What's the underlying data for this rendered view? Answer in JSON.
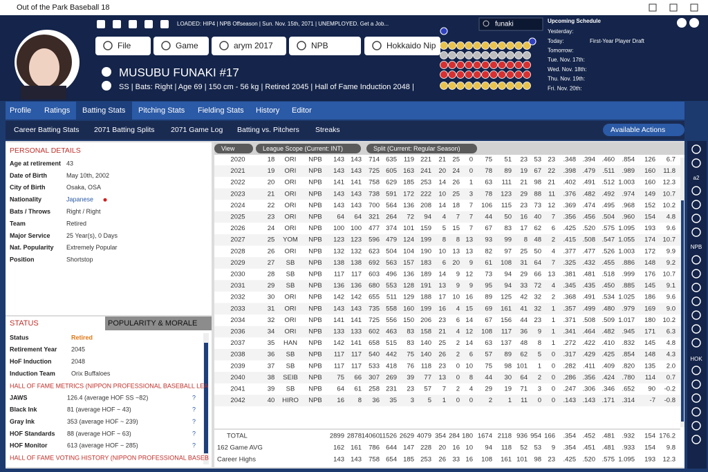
{
  "window": {
    "title": "Out of the Park Baseball 18"
  },
  "header": {
    "status": "LOADED: HIP4 | NPB Offseason | Sun. Nov. 15th, 2071 | UNEMPLOYED. Get a Job...",
    "search": "funaki",
    "nav": [
      "File",
      "Game",
      "arym 2017",
      "NPB",
      "Hokkaido Nip"
    ],
    "player_name": "MUSUBU FUNAKI  #17",
    "player_info": "SS | Bats: Right | Age 69 | 150 cm - 56 kg | Retired 2045 | Hall of Fame Induction 2048 |"
  },
  "schedule": {
    "title": "Upcoming Schedule",
    "days": [
      "Yesterday:",
      "Today:",
      "Tomorrow:",
      "Tue. Nov. 17th:",
      "Wed. Nov. 18th:",
      "Thu. Nov. 19th:",
      "Fri. Nov. 20th:"
    ],
    "today_event": "First-Year Player Draft"
  },
  "tabs": [
    "Profile",
    "Ratings",
    "Batting Stats",
    "Pitching Stats",
    "Fielding Stats",
    "History",
    "Editor"
  ],
  "subtabs": [
    "Career Batting Stats",
    "2071 Batting Splits",
    "2071 Game Log",
    "Batting vs. Pitchers",
    "Streaks"
  ],
  "actions": "Available Actions",
  "personal_details": {
    "title": "PERSONAL DETAILS",
    "rows": [
      [
        "Age at retirement",
        "43"
      ],
      [
        "Date of Birth",
        "May 10th, 2002"
      ],
      [
        "City of Birth",
        "Osaka, OSA"
      ],
      [
        "Nationality",
        "Japanese"
      ],
      [
        "Bats / Throws",
        "Right / Right"
      ],
      [
        "Team",
        "Retired"
      ],
      [
        "Major Service",
        "25 Year(s), 0 Days"
      ],
      [
        "Nat. Popularity",
        "Extremely Popular"
      ],
      [
        "Position",
        "Shortstop"
      ]
    ]
  },
  "status_panel": {
    "tabs": [
      "STATUS",
      "POPULARITY & MORALE"
    ],
    "rows": [
      [
        "Status",
        "Retired"
      ],
      [
        "Retirement Year",
        "2045"
      ],
      [
        "HoF Induction",
        "2048"
      ],
      [
        "Induction Team",
        "Orix Buffaloes"
      ]
    ],
    "metrics_title": "HALL OF FAME METRICS (NIPPON PROFESSIONAL BASEBALL LEA",
    "metrics": [
      {
        "name": "JAWS",
        "value": "126.4 (average HOF SS ~82)",
        "help": "?"
      },
      {
        "name": "Black Ink",
        "value": "81 (average HOF ~ 43)",
        "help": "?"
      },
      {
        "name": "Gray Ink",
        "value": "353 (average HOF ~ 239)",
        "help": "?"
      },
      {
        "name": "HOF Standards",
        "value": "88 (average HOF ~ 63)",
        "help": "?"
      },
      {
        "name": "HOF Monitor",
        "value": "613 (average HOF ~ 285)",
        "help": "?"
      }
    ],
    "voting_title": "HALL OF FAME VOTING HISTORY (NIPPON PROFESSIONAL BASEB"
  },
  "table": {
    "filters": [
      "View",
      "League Scope (Current: INT)",
      "Split (Current: Regular Season)"
    ],
    "rows": [
      [
        "2020",
        "18",
        "ORI",
        "NPB",
        "143",
        "143",
        "714",
        "635",
        "119",
        "221",
        "21",
        "25",
        "0",
        "75",
        "51",
        "23",
        "53",
        "23",
        ".348",
        ".394",
        ".460",
        ".854",
        "126",
        "6.7"
      ],
      [
        "2021",
        "19",
        "ORI",
        "NPB",
        "143",
        "143",
        "725",
        "605",
        "163",
        "241",
        "20",
        "24",
        "0",
        "78",
        "89",
        "19",
        "67",
        "22",
        ".398",
        ".479",
        ".511",
        ".989",
        "160",
        "11.8"
      ],
      [
        "2022",
        "20",
        "ORI",
        "NPB",
        "141",
        "141",
        "758",
        "629",
        "185",
        "253",
        "14",
        "26",
        "1",
        "63",
        "111",
        "21",
        "98",
        "21",
        ".402",
        ".491",
        ".512",
        "1.003",
        "160",
        "12.3"
      ],
      [
        "2023",
        "21",
        "ORI",
        "NPB",
        "143",
        "143",
        "738",
        "591",
        "172",
        "222",
        "10",
        "25",
        "3",
        "78",
        "123",
        "29",
        "88",
        "11",
        ".376",
        ".482",
        ".492",
        ".974",
        "149",
        "10.7"
      ],
      [
        "2024",
        "22",
        "ORI",
        "NPB",
        "143",
        "143",
        "700",
        "564",
        "136",
        "208",
        "14",
        "18",
        "7",
        "106",
        "115",
        "23",
        "73",
        "12",
        ".369",
        ".474",
        ".495",
        ".968",
        "152",
        "10.2"
      ],
      [
        "2025",
        "23",
        "ORI",
        "NPB",
        "64",
        "64",
        "321",
        "264",
        "72",
        "94",
        "4",
        "7",
        "7",
        "44",
        "50",
        "16",
        "40",
        "7",
        ".356",
        ".456",
        ".504",
        ".960",
        "154",
        "4.8"
      ],
      [
        "2026",
        "24",
        "ORI",
        "NPB",
        "100",
        "100",
        "477",
        "374",
        "101",
        "159",
        "5",
        "15",
        "7",
        "67",
        "83",
        "17",
        "62",
        "6",
        ".425",
        ".520",
        ".575",
        "1.095",
        "193",
        "9.6"
      ],
      [
        "2027",
        "25",
        "YOM",
        "NPB",
        "123",
        "123",
        "596",
        "479",
        "124",
        "199",
        "8",
        "8",
        "13",
        "93",
        "99",
        "8",
        "48",
        "2",
        ".415",
        ".508",
        ".547",
        "1.055",
        "174",
        "10.7"
      ],
      [
        "2028",
        "26",
        "ORI",
        "NPB",
        "132",
        "132",
        "623",
        "504",
        "104",
        "190",
        "10",
        "13",
        "13",
        "82",
        "97",
        "25",
        "50",
        "4",
        ".377",
        ".477",
        ".526",
        "1.003",
        "172",
        "9.9"
      ],
      [
        "2029",
        "27",
        "SB",
        "NPB",
        "138",
        "138",
        "692",
        "563",
        "157",
        "183",
        "6",
        "20",
        "9",
        "61",
        "108",
        "31",
        "64",
        "7",
        ".325",
        ".432",
        ".455",
        ".886",
        "148",
        "9.2"
      ],
      [
        "2030",
        "28",
        "SB",
        "NPB",
        "117",
        "117",
        "603",
        "496",
        "136",
        "189",
        "14",
        "9",
        "12",
        "73",
        "94",
        "29",
        "66",
        "13",
        ".381",
        ".481",
        ".518",
        ".999",
        "176",
        "10.7"
      ],
      [
        "2031",
        "29",
        "SB",
        "NPB",
        "136",
        "136",
        "680",
        "553",
        "128",
        "191",
        "13",
        "9",
        "9",
        "95",
        "94",
        "33",
        "72",
        "4",
        ".345",
        ".435",
        ".450",
        ".885",
        "145",
        "9.1"
      ],
      [
        "2032",
        "30",
        "ORI",
        "NPB",
        "142",
        "142",
        "655",
        "511",
        "129",
        "188",
        "17",
        "10",
        "16",
        "89",
        "125",
        "42",
        "32",
        "2",
        ".368",
        ".491",
        ".534",
        "1.025",
        "186",
        "9.6"
      ],
      [
        "2033",
        "31",
        "ORI",
        "NPB",
        "143",
        "143",
        "735",
        "558",
        "160",
        "199",
        "16",
        "4",
        "15",
        "69",
        "161",
        "41",
        "32",
        "1",
        ".357",
        ".499",
        ".480",
        ".979",
        "169",
        "9.0"
      ],
      [
        "2034",
        "32",
        "ORI",
        "NPB",
        "141",
        "141",
        "725",
        "556",
        "150",
        "206",
        "23",
        "6",
        "14",
        "67",
        "156",
        "44",
        "23",
        "1",
        ".371",
        ".508",
        ".509",
        "1.017",
        "180",
        "10.2"
      ],
      [
        "2036",
        "34",
        "ORI",
        "NPB",
        "133",
        "133",
        "602",
        "463",
        "83",
        "158",
        "21",
        "4",
        "12",
        "108",
        "117",
        "36",
        "9",
        "1",
        ".341",
        ".464",
        ".482",
        ".945",
        "171",
        "6.3"
      ],
      [
        "2037",
        "35",
        "HAN",
        "NPB",
        "142",
        "141",
        "658",
        "515",
        "83",
        "140",
        "25",
        "2",
        "14",
        "63",
        "137",
        "48",
        "8",
        "1",
        ".272",
        ".422",
        ".410",
        ".832",
        "145",
        "4.8"
      ],
      [
        "2038",
        "36",
        "SB",
        "NPB",
        "117",
        "117",
        "540",
        "442",
        "75",
        "140",
        "26",
        "2",
        "6",
        "57",
        "89",
        "62",
        "5",
        "0",
        ".317",
        ".429",
        ".425",
        ".854",
        "148",
        "4.3"
      ],
      [
        "2039",
        "37",
        "SB",
        "NPB",
        "117",
        "117",
        "533",
        "418",
        "76",
        "118",
        "23",
        "0",
        "10",
        "75",
        "98",
        "101",
        "1",
        "0",
        ".282",
        ".411",
        ".409",
        ".820",
        "135",
        "2.0"
      ],
      [
        "2040",
        "38",
        "SEIB",
        "NPB",
        "75",
        "66",
        "307",
        "269",
        "39",
        "77",
        "13",
        "0",
        "8",
        "44",
        "30",
        "64",
        "2",
        "0",
        ".286",
        ".356",
        ".424",
        ".780",
        "114",
        "0.7"
      ],
      [
        "2041",
        "39",
        "SB",
        "NPB",
        "64",
        "61",
        "258",
        "231",
        "23",
        "57",
        "7",
        "2",
        "4",
        "29",
        "19",
        "71",
        "3",
        "0",
        ".247",
        ".306",
        ".346",
        ".652",
        "90",
        "-0.2"
      ],
      [
        "2042",
        "40",
        "HIRO",
        "NPB",
        "16",
        "8",
        "36",
        "35",
        "3",
        "5",
        "1",
        "0",
        "0",
        "2",
        "1",
        "11",
        "0",
        "0",
        ".143",
        ".143",
        ".171",
        ".314",
        "-7",
        "-0.8"
      ]
    ],
    "summary": [
      {
        "label": "TOTAL",
        "values": [
          "2899",
          "2878",
          "14060",
          "11526",
          "2629",
          "4079",
          "354",
          "284",
          "180",
          "1674",
          "2118",
          "936",
          "954",
          "166",
          ".354",
          ".452",
          ".481",
          ".932",
          "154",
          "176.2"
        ]
      },
      {
        "label": "162 Game AVG",
        "values": [
          "162",
          "161",
          "786",
          "644",
          "147",
          "228",
          "20",
          "16",
          "10",
          "94",
          "118",
          "52",
          "53",
          "9",
          ".354",
          ".451",
          ".481",
          ".933",
          "154",
          "9.8"
        ]
      },
      {
        "label": "Career Highs",
        "values": [
          "143",
          "143",
          "758",
          "654",
          "185",
          "253",
          "26",
          "33",
          "16",
          "108",
          "161",
          "101",
          "98",
          "23",
          ".425",
          ".520",
          ".575",
          "1.095",
          "193",
          "12.3"
        ]
      }
    ]
  },
  "sidebar": {
    "labels": [
      "a2",
      "NPB",
      "HOK"
    ]
  }
}
